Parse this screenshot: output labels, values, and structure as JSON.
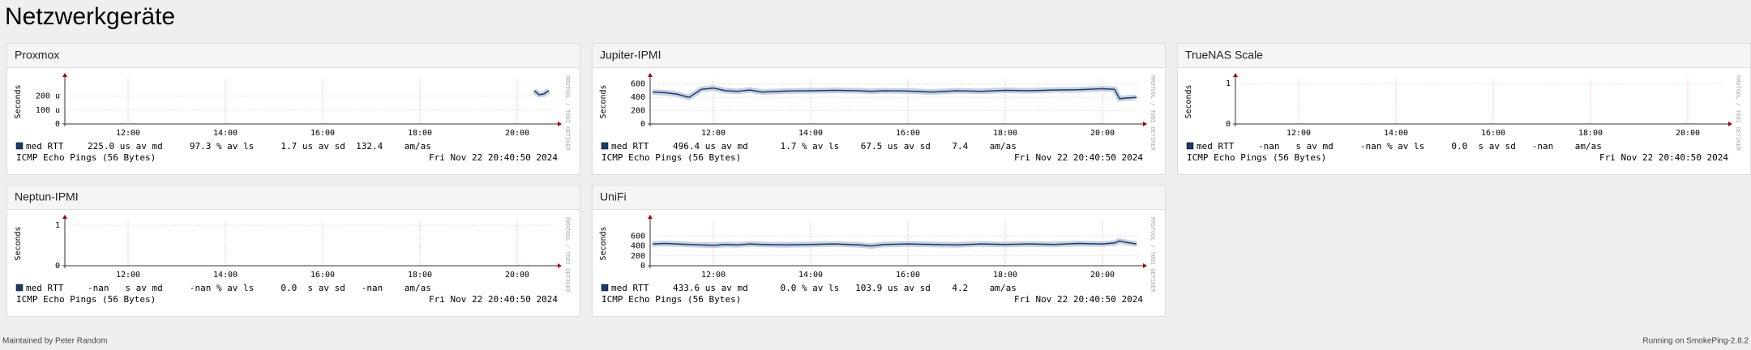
{
  "header": {
    "title": "Netzwerkgeräte"
  },
  "panels": [
    {
      "title": "Proxmox",
      "chart": {
        "type": "line",
        "y_label": "Seconds",
        "xlim": [
          10.7,
          20.75
        ],
        "ylim": [
          0,
          320
        ],
        "xticks": [
          {
            "value": 12,
            "label": "12:00"
          },
          {
            "value": 14,
            "label": "14:00"
          },
          {
            "value": 16,
            "label": "16:00"
          },
          {
            "value": 18,
            "label": "18:00"
          },
          {
            "value": 20,
            "label": "20:00"
          }
        ],
        "yticks": [
          0,
          {
            "value": 100,
            "label": "100 u"
          },
          {
            "value": 200,
            "label": "200 u"
          }
        ],
        "series": [
          {
            "name": "med RTT",
            "color": "#1b3a6b",
            "x": [
              20.35,
              20.45,
              20.55,
              20.65
            ],
            "values": [
              240,
              210,
              215,
              240
            ]
          }
        ],
        "stats": "225.0 us av md     97.3 % av ls     1.7 us av sd  132.4    am/as",
        "probe": "ICMP Echo Pings (56 Bytes)",
        "timestamp": "Fri Nov 22 20:40:50 2024",
        "watermark": "RRDTOOL / TOBI OETIKER"
      }
    },
    {
      "title": "Jupiter-IPMI",
      "chart": {
        "type": "line",
        "y_label": "Seconds",
        "xlim": [
          10.7,
          20.75
        ],
        "ylim": [
          0,
          670
        ],
        "xticks": [
          {
            "value": 12,
            "label": "12:00"
          },
          {
            "value": 14,
            "label": "14:00"
          },
          {
            "value": 16,
            "label": "16:00"
          },
          {
            "value": 18,
            "label": "18:00"
          },
          {
            "value": 20,
            "label": "20:00"
          }
        ],
        "yticks": [
          0,
          200,
          400,
          600
        ],
        "series": [
          {
            "name": "med RTT",
            "color": "#1b3a6b",
            "x": [
              10.75,
              11.0,
              11.25,
              11.5,
              11.75,
              12.0,
              12.25,
              12.5,
              12.75,
              13.0,
              13.5,
              14.0,
              14.5,
              15.0,
              15.25,
              15.5,
              16.0,
              16.5,
              17.0,
              17.5,
              18.0,
              18.5,
              19.0,
              19.5,
              20.0,
              20.25,
              20.35,
              20.5,
              20.7
            ],
            "values": [
              480,
              470,
              450,
              400,
              520,
              540,
              500,
              490,
              510,
              480,
              495,
              500,
              505,
              500,
              490,
              500,
              495,
              480,
              500,
              490,
              505,
              500,
              510,
              515,
              530,
              520,
              380,
              390,
              400
            ]
          }
        ],
        "stats": "496.4 us av md      1.7 % av ls    67.5 us av sd    7.4    am/as",
        "probe": "ICMP Echo Pings (56 Bytes)",
        "timestamp": "Fri Nov 22 20:40:50 2024",
        "watermark": "RRDTOOL / TOBI OETIKER"
      }
    },
    {
      "title": "TrueNAS Scale",
      "chart": {
        "type": "line",
        "y_label": "Seconds",
        "xlim": [
          10.7,
          20.75
        ],
        "ylim": [
          0,
          1.1
        ],
        "xticks": [
          {
            "value": 12,
            "label": "12:00"
          },
          {
            "value": 14,
            "label": "14:00"
          },
          {
            "value": 16,
            "label": "16:00"
          },
          {
            "value": 18,
            "label": "18:00"
          },
          {
            "value": 20,
            "label": "20:00"
          }
        ],
        "yticks": [
          0,
          1
        ],
        "series": [
          {
            "name": "med RTT",
            "color": "#1b3a6b",
            "x": [],
            "values": []
          }
        ],
        "stats": "-nan   s av md     -nan % av ls     0.0  s av sd   -nan    am/as",
        "probe": "ICMP Echo Pings (56 Bytes)",
        "timestamp": "Fri Nov 22 20:40:50 2024",
        "watermark": "RRDTOOL / TOBI OETIKER"
      }
    },
    {
      "title": "Neptun-IPMI",
      "chart": {
        "type": "line",
        "y_label": "Seconds",
        "xlim": [
          10.7,
          20.75
        ],
        "ylim": [
          0,
          1.1
        ],
        "xticks": [
          {
            "value": 12,
            "label": "12:00"
          },
          {
            "value": 14,
            "label": "14:00"
          },
          {
            "value": 16,
            "label": "16:00"
          },
          {
            "value": 18,
            "label": "18:00"
          },
          {
            "value": 20,
            "label": "20:00"
          }
        ],
        "yticks": [
          0,
          1
        ],
        "series": [
          {
            "name": "med RTT",
            "color": "#1b3a6b",
            "x": [],
            "values": []
          }
        ],
        "stats": "-nan   s av md     -nan % av ls     0.0  s av sd   -nan    am/as",
        "probe": "ICMP Echo Pings (56 Bytes)",
        "timestamp": "Fri Nov 22 20:40:50 2024",
        "watermark": "RRDTOOL / TOBI OETIKER"
      }
    },
    {
      "title": "UniFi",
      "chart": {
        "type": "line",
        "y_label": "Seconds",
        "xlim": [
          10.7,
          20.75
        ],
        "ylim": [
          0,
          900
        ],
        "xticks": [
          {
            "value": 12,
            "label": "12:00"
          },
          {
            "value": 14,
            "label": "14:00"
          },
          {
            "value": 16,
            "label": "16:00"
          },
          {
            "value": 18,
            "label": "18:00"
          },
          {
            "value": 20,
            "label": "20:00"
          }
        ],
        "yticks": [
          0,
          200,
          400,
          600
        ],
        "series": [
          {
            "name": "med RTT",
            "color": "#1b3a6b",
            "x": [
              10.75,
              11.0,
              11.25,
              11.5,
              11.75,
              12.0,
              12.25,
              12.5,
              12.75,
              13.0,
              13.5,
              14.0,
              14.5,
              15.0,
              15.25,
              15.5,
              16.0,
              16.5,
              17.0,
              17.5,
              18.0,
              18.5,
              19.0,
              19.5,
              20.0,
              20.25,
              20.35,
              20.5,
              20.7
            ],
            "values": [
              440,
              450,
              440,
              430,
              420,
              410,
              430,
              420,
              440,
              430,
              420,
              430,
              440,
              420,
              400,
              430,
              440,
              430,
              420,
              440,
              430,
              440,
              430,
              450,
              440,
              460,
              500,
              470,
              440
            ]
          }
        ],
        "stats": "433.6 us av md      0.0 % av ls   103.9 us av sd    4.2    am/as",
        "probe": "ICMP Echo Pings (56 Bytes)",
        "timestamp": "Fri Nov 22 20:40:50 2024",
        "watermark": "RRDTOOL / TOBI OETIKER"
      }
    }
  ],
  "footer": {
    "left": "Maintained by Peter Random",
    "right": "Running on SmokePing-2.8.2"
  }
}
